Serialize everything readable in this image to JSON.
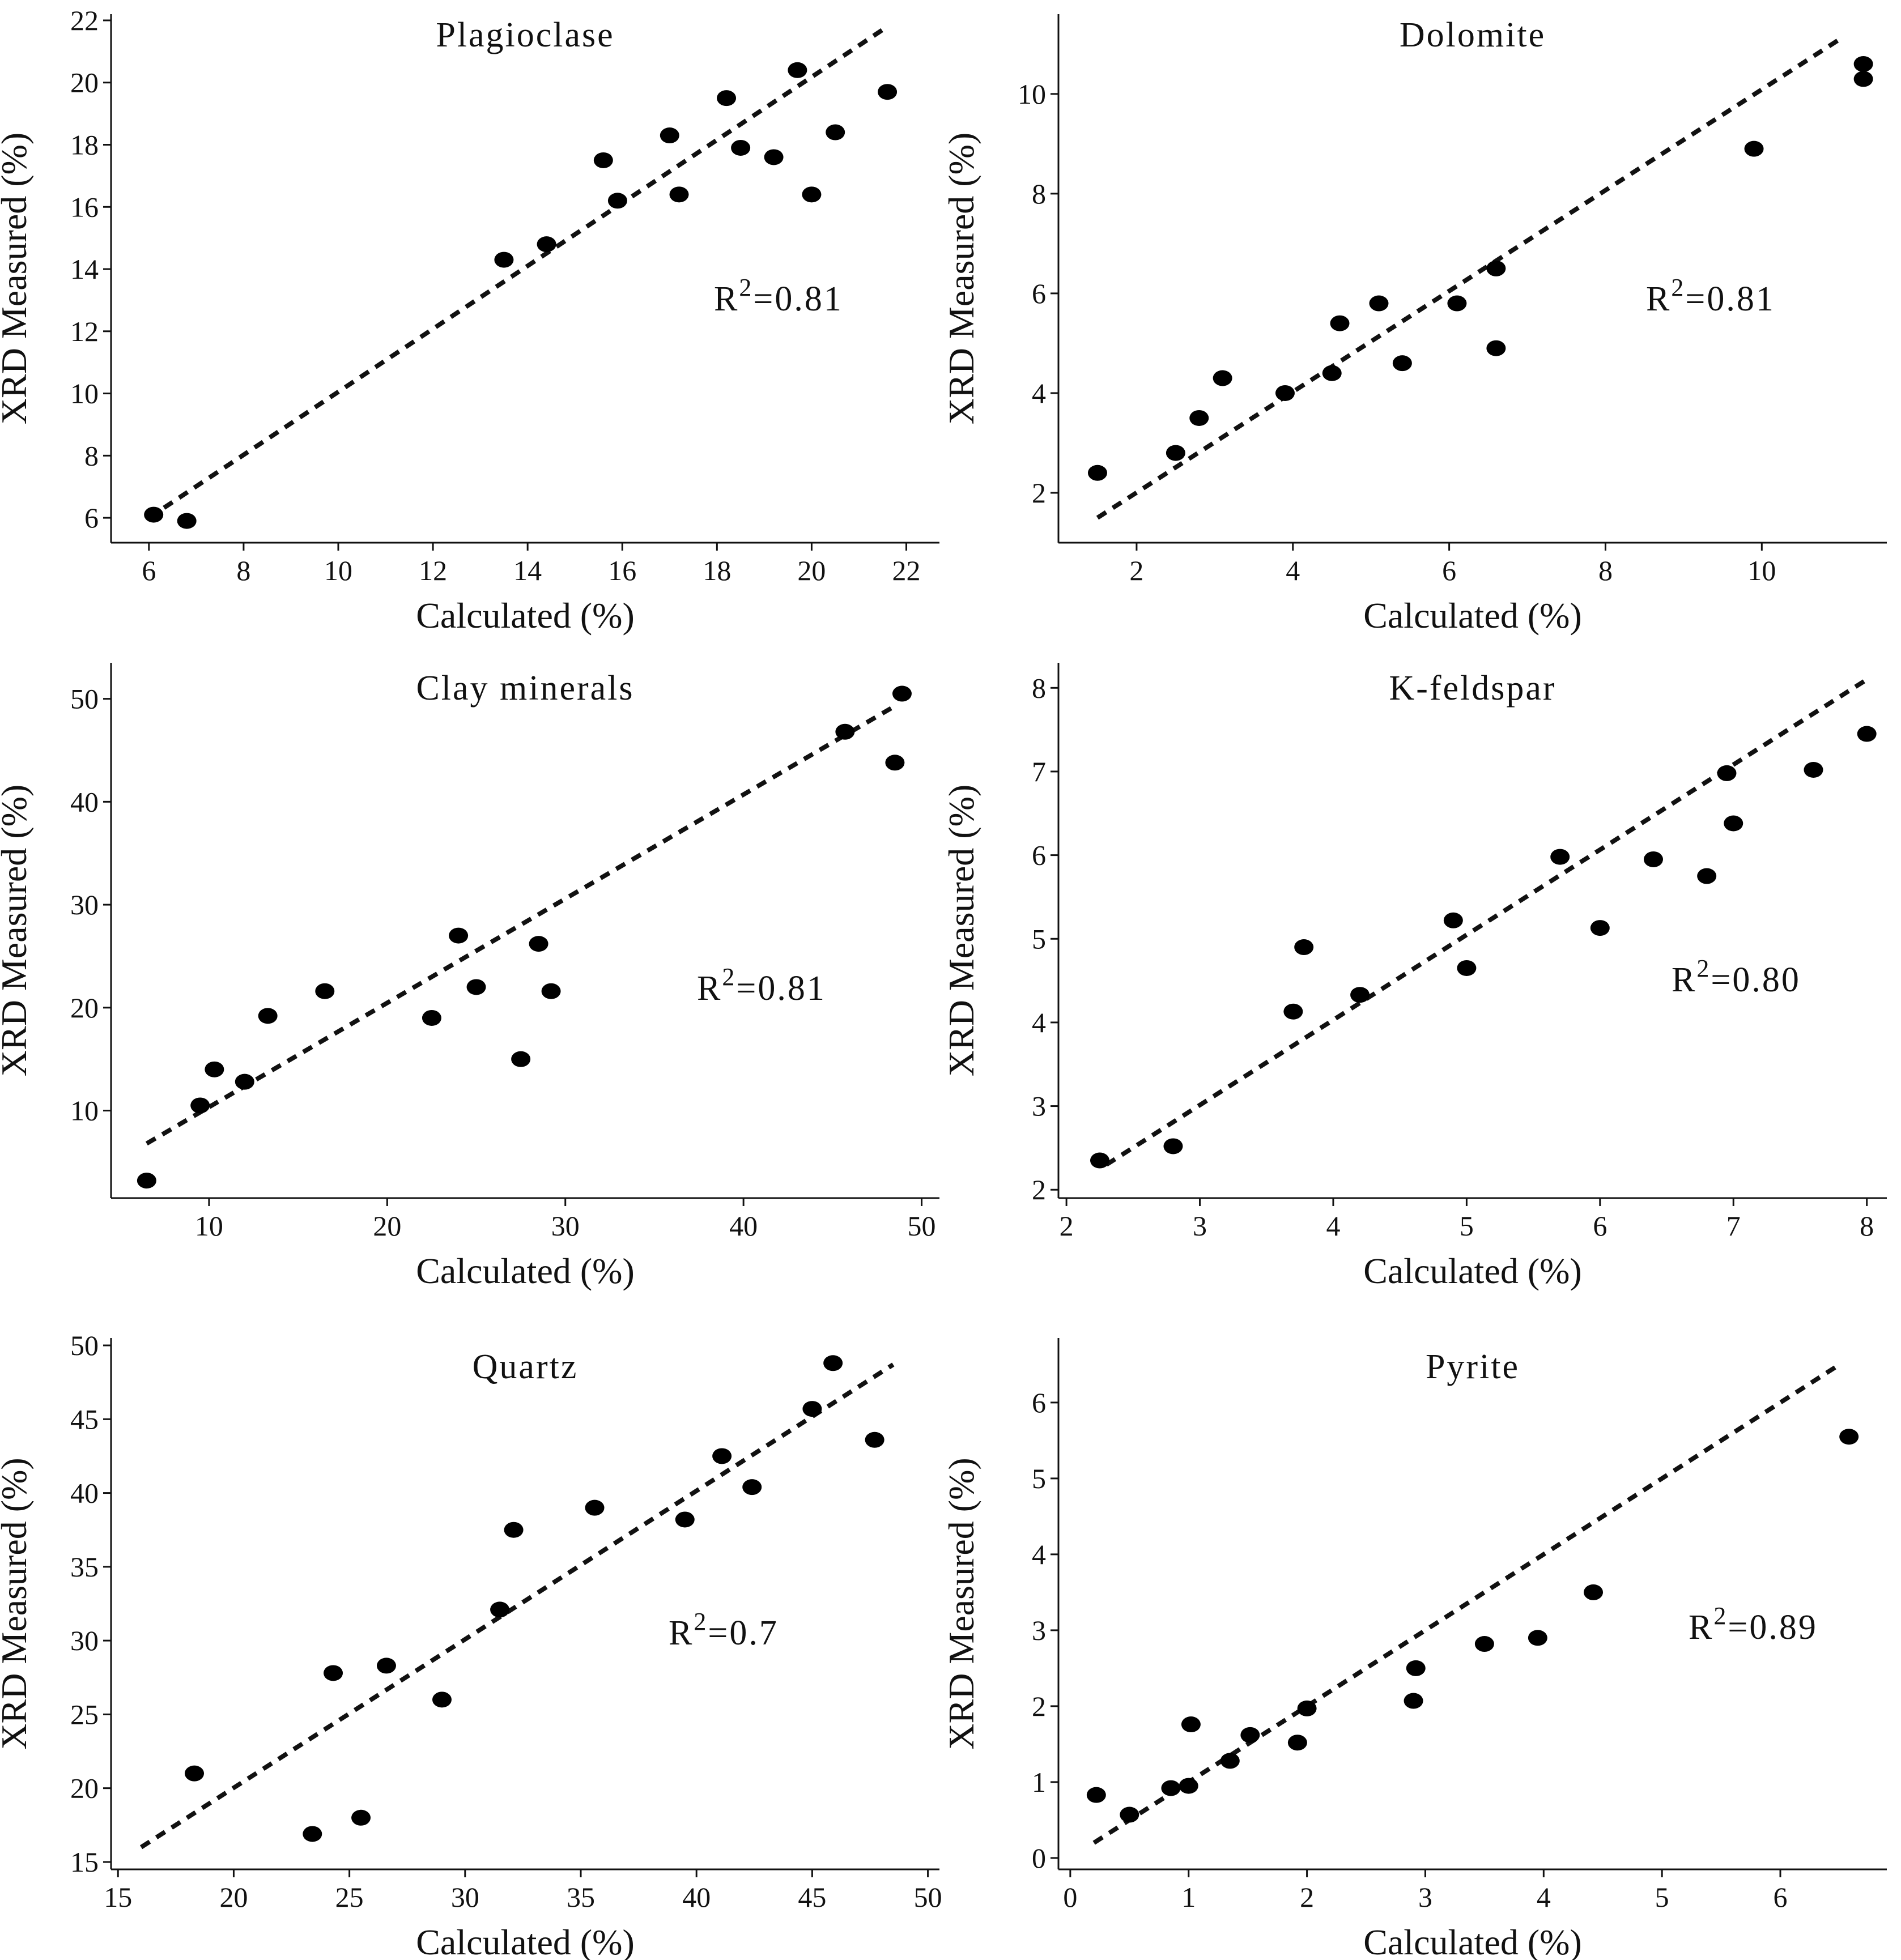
{
  "chart_data": [
    {
      "type": "scatter",
      "title": "Plagioclase",
      "xlabel": "Calculated (%)",
      "ylabel": "XRD Measured (%)",
      "xlim": [
        5.2,
        22.7
      ],
      "ylim": [
        5.2,
        22.2
      ],
      "xticks": [
        6,
        8,
        10,
        12,
        14,
        16,
        18,
        20,
        22
      ],
      "yticks": [
        6,
        8,
        10,
        12,
        14,
        16,
        18,
        20,
        22
      ],
      "annotation": {
        "base": "R",
        "sup": "2",
        "rest": "=0.81"
      },
      "fit_line": {
        "x": [
          6.0,
          21.6
        ],
        "y": [
          6.0,
          21.8
        ]
      },
      "points": {
        "x": [
          6.1,
          6.8,
          13.5,
          14.4,
          15.6,
          15.9,
          17.0,
          17.2,
          18.2,
          18.5,
          19.2,
          19.7,
          20.0,
          20.5,
          21.6
        ],
        "y": [
          6.1,
          5.9,
          14.3,
          14.8,
          17.5,
          16.2,
          18.3,
          16.4,
          19.5,
          17.9,
          17.6,
          20.4,
          16.4,
          18.4,
          19.7
        ]
      }
    },
    {
      "type": "scatter",
      "title": "Dolomite",
      "xlabel": "Calculated (%)",
      "ylabel": "XRD Measured (%)",
      "xlim": [
        1.0,
        11.6
      ],
      "ylim": [
        1.0,
        11.6
      ],
      "xticks": [
        2,
        4,
        6,
        8,
        10
      ],
      "yticks": [
        2,
        4,
        6,
        8,
        10
      ],
      "annotation": {
        "base": "R",
        "sup": "2",
        "rest": "=0.81"
      },
      "fit_line": {
        "x": [
          1.5,
          11.0
        ],
        "y": [
          1.5,
          11.1
        ]
      },
      "points": {
        "x": [
          1.5,
          2.5,
          2.8,
          3.1,
          3.9,
          4.5,
          4.6,
          5.1,
          5.4,
          6.1,
          6.6,
          6.6,
          9.9,
          11.3,
          11.3
        ],
        "y": [
          2.4,
          2.8,
          3.5,
          4.3,
          4.0,
          4.4,
          5.4,
          5.8,
          4.6,
          5.8,
          4.9,
          6.5,
          8.9,
          10.6,
          10.3
        ]
      }
    },
    {
      "type": "scatter",
      "title": "Clay minerals",
      "xlabel": "Calculated (%)",
      "ylabel": "XRD Measured (%)",
      "xlim": [
        4.5,
        51.0
      ],
      "ylim": [
        1.5,
        53.5
      ],
      "xticks": [
        10,
        20,
        30,
        40,
        50
      ],
      "yticks": [
        10,
        20,
        30,
        40,
        50
      ],
      "annotation": {
        "base": "R",
        "sup": "2",
        "rest": "=0.81"
      },
      "fit_line": {
        "x": [
          6.5,
          48.5
        ],
        "y": [
          6.8,
          49.3
        ]
      },
      "points": {
        "x": [
          6.5,
          9.5,
          10.3,
          12.0,
          13.3,
          16.5,
          22.5,
          24.0,
          25.0,
          27.5,
          28.5,
          29.2,
          45.7,
          48.5,
          48.9
        ],
        "y": [
          3.2,
          10.5,
          14.0,
          12.8,
          19.2,
          21.6,
          19.0,
          27.0,
          22.0,
          15.0,
          26.2,
          21.6,
          46.8,
          43.8,
          50.5
        ]
      }
    },
    {
      "type": "scatter",
      "title": "K-feldspar",
      "xlabel": "Calculated (%)",
      "ylabel": "XRD Measured (%)",
      "xlim": [
        1.94,
        8.15
      ],
      "ylim": [
        1.9,
        8.3
      ],
      "xticks": [
        2,
        3,
        4,
        5,
        6,
        7,
        8
      ],
      "yticks": [
        2,
        3,
        4,
        5,
        6,
        7,
        8
      ],
      "annotation": {
        "base": "R",
        "sup": "2",
        "rest": "=0.80"
      },
      "fit_line": {
        "x": [
          2.3,
          8.0
        ],
        "y": [
          2.3,
          8.1
        ]
      },
      "points": {
        "x": [
          2.25,
          2.8,
          3.7,
          3.78,
          4.2,
          4.9,
          5.0,
          5.7,
          6.0,
          6.4,
          6.8,
          6.95,
          7.0,
          7.6,
          8.0
        ],
        "y": [
          2.35,
          2.52,
          4.13,
          4.9,
          4.33,
          5.22,
          4.65,
          5.98,
          5.13,
          5.95,
          5.75,
          6.98,
          6.38,
          7.02,
          7.45
        ]
      }
    },
    {
      "type": "scatter",
      "title": "Quartz",
      "xlabel": "Calculated (%)",
      "ylabel": "XRD Measured (%)",
      "xlim": [
        14.7,
        50.5
      ],
      "ylim": [
        14.5,
        50.5
      ],
      "xticks": [
        15,
        20,
        25,
        30,
        35,
        40,
        45,
        50
      ],
      "yticks": [
        15,
        20,
        25,
        30,
        35,
        40,
        45,
        50
      ],
      "annotation": {
        "base": "R",
        "sup": "2",
        "rest": "=0.7"
      },
      "fit_line": {
        "x": [
          16.0,
          48.5
        ],
        "y": [
          16.0,
          48.7
        ]
      },
      "points": {
        "x": [
          18.3,
          23.4,
          24.3,
          25.5,
          26.6,
          29.0,
          31.5,
          32.1,
          35.6,
          39.5,
          41.1,
          42.4,
          45.0,
          45.9,
          47.7
        ],
        "y": [
          21.0,
          16.9,
          27.8,
          18.0,
          28.3,
          26.0,
          32.1,
          37.5,
          39.0,
          38.2,
          42.5,
          40.4,
          45.7,
          48.8,
          43.6
        ]
      }
    },
    {
      "type": "scatter",
      "title": "Pyrite",
      "xlabel": "Calculated (%)",
      "ylabel": "XRD Measured (%)",
      "xlim": [
        -0.1,
        6.9
      ],
      "ylim": [
        -0.15,
        6.85
      ],
      "xticks": [
        0,
        1,
        2,
        3,
        4,
        5,
        6
      ],
      "yticks": [
        0,
        1,
        2,
        3,
        4,
        5,
        6
      ],
      "annotation": {
        "base": "R",
        "sup": "2",
        "rest": "=0.89"
      },
      "fit_line": {
        "x": [
          0.2,
          6.5
        ],
        "y": [
          0.2,
          6.5
        ]
      },
      "points": {
        "x": [
          0.22,
          0.5,
          0.85,
          1.0,
          1.02,
          1.35,
          1.52,
          1.92,
          2.0,
          2.9,
          2.92,
          3.5,
          3.95,
          4.42,
          6.58
        ],
        "y": [
          0.83,
          0.57,
          0.92,
          0.95,
          1.76,
          1.28,
          1.62,
          1.52,
          1.97,
          2.07,
          2.5,
          2.82,
          2.9,
          3.5,
          5.55
        ]
      }
    }
  ]
}
